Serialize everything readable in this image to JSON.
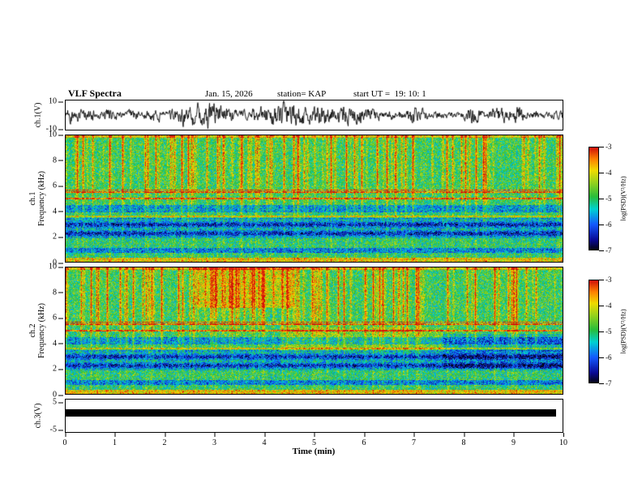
{
  "header": {
    "title": "VLF Spectra",
    "date": "Jan. 15, 2026",
    "station": "station= KAP",
    "start_ut": "start UT =  19: 10: 1"
  },
  "panels": {
    "ch1_wave": {
      "ylabel": "ch.1(V)",
      "yticks": [
        "10",
        "-10"
      ]
    },
    "ch1_spec": {
      "ylabel_line1": "ch.1",
      "ylabel_line2": "Frequency (kHz)",
      "yticks": [
        "10",
        "8",
        "6",
        "4",
        "2",
        "0"
      ]
    },
    "ch2_spec": {
      "ylabel_line1": "ch.2",
      "ylabel_line2": "Frequency (kHz)",
      "yticks": [
        "10",
        "8",
        "6",
        "4",
        "2",
        "0"
      ]
    },
    "ch3_wave": {
      "ylabel": "ch.3(V)",
      "yticks": [
        "5",
        "-5"
      ]
    }
  },
  "xaxis": {
    "label": "Time (min)",
    "ticks": [
      "0",
      "1",
      "2",
      "3",
      "4",
      "5",
      "6",
      "7",
      "8",
      "9",
      "10"
    ]
  },
  "colorbars": {
    "label": "log(PSD)(V²/Hz)",
    "ticks": [
      "-3",
      "-4",
      "-5",
      "-6",
      "-7"
    ]
  },
  "colors": {
    "background": "#ffffff",
    "axis": "#000000",
    "waveform": "#000000",
    "ch3_bar": "#000000"
  },
  "chart_data": [
    {
      "type": "line",
      "panel": "ch1-waveform",
      "ylabel": "ch.1(V)",
      "ylim": [
        -10,
        10
      ],
      "yticks": [
        10,
        -10
      ],
      "xlim": [
        0,
        10
      ],
      "grid": false,
      "series": [
        {
          "name": "ch.1 voltage",
          "description": "continuous dense black noise waveform spanning the full 10 minutes, amplitude fluctuating roughly ±8 V around 0 V"
        }
      ]
    },
    {
      "type": "heatmap",
      "panel": "ch1-spectrogram",
      "title": "",
      "xlabel": "Time (min)",
      "xlim": [
        0,
        10
      ],
      "ylabel": "ch.1 Frequency (kHz)",
      "ylim": [
        0,
        10
      ],
      "yticks": [
        0,
        2,
        4,
        6,
        8,
        10
      ],
      "zlabel": "log(PSD)(V²/Hz)",
      "zlim": [
        -7,
        -3
      ],
      "colormap": "jet",
      "legend_position": "right-colorbar",
      "features": [
        "green background near -5 log(PSD)",
        "dark blue speckled bands near 0.8-1.1 kHz, 2.0-3.5 kHz and 4.0-4.6 kHz",
        "bright orange horizontal hum lines near 5.0 and 5.5-5.7 kHz and at 0-0.3 kHz",
        "bright red line along the top edge near 10 kHz",
        "many red/orange vertical transient streaks over the whole record, strongest above 5 kHz"
      ]
    },
    {
      "type": "heatmap",
      "panel": "ch2-spectrogram",
      "title": "",
      "xlabel": "Time (min)",
      "xlim": [
        0,
        10
      ],
      "ylabel": "ch.2 Frequency (kHz)",
      "ylim": [
        0,
        10
      ],
      "yticks": [
        0,
        2,
        4,
        6,
        8,
        10
      ],
      "zlabel": "log(PSD)(V²/Hz)",
      "zlim": [
        -7,
        -3
      ],
      "colormap": "jet",
      "legend_position": "right-colorbar",
      "features": [
        "similar green background with blue speckled bands at 0.8-1.1, 2.0-3.5 and 4.0-4.6 kHz",
        "dense cluster of red streaks between about 2.6 and 4.6 min above 7 kHz",
        "yellowish enhanced zone around 3.5-5 kHz between about 4.5 and 7.5 min",
        "more blue speckle at 2-5 kHz after about 7.6 min",
        "orange hum lines near 5.0 and 5.5-5.7 kHz"
      ]
    },
    {
      "type": "line",
      "panel": "ch3-waveform",
      "ylabel": "ch.3(V)",
      "ylim": [
        -5,
        5
      ],
      "yticks": [
        5,
        -5
      ],
      "xlim": [
        0,
        10
      ],
      "grid": false,
      "series": [
        {
          "name": "ch.3 voltage",
          "description": "thick flat saturated black bar at about 0 V extending from 0 to about 9.9 min"
        }
      ]
    }
  ]
}
